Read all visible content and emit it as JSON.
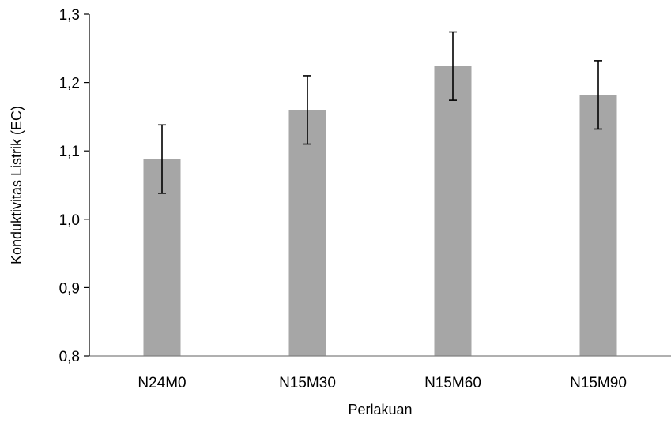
{
  "chart_data": {
    "type": "bar",
    "title": "",
    "xlabel": "Perlakuan",
    "ylabel": "Konduktivitas Listrik (EC)",
    "categories": [
      "N24M0",
      "N15M30",
      "N15M60",
      "N15M90"
    ],
    "values": [
      1.088,
      1.16,
      1.224,
      1.182
    ],
    "error": [
      0.05,
      0.05,
      0.05,
      0.05
    ],
    "ylim": [
      0.8,
      1.3
    ],
    "yticks": [
      0.8,
      0.9,
      1.0,
      1.1,
      1.2,
      1.3
    ],
    "ytick_labels": [
      "0,8",
      "0,9",
      "1,0",
      "1,1",
      "1,2",
      "1,3"
    ],
    "bar_color": "#a6a6a6",
    "grid": false,
    "legend": "none"
  }
}
